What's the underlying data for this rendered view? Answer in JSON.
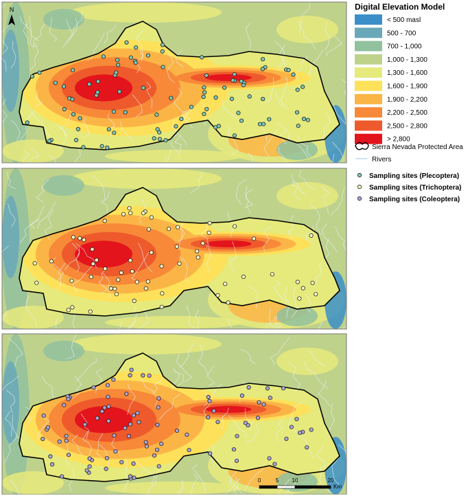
{
  "legend": {
    "title": "Digital Elevation Model",
    "classes": [
      {
        "label": "< 500 masl",
        "color": "#3b8fc8"
      },
      {
        "label": "500 - 700",
        "color": "#69a8b8"
      },
      {
        "label": "700 - 1,000",
        "color": "#92c19e"
      },
      {
        "label": "1,000 - 1,300",
        "color": "#bfd28c"
      },
      {
        "label": "1,300 - 1,600",
        "color": "#e6ea7c"
      },
      {
        "label": "1,600 - 1,900",
        "color": "#fde15a"
      },
      {
        "label": "1,900 - 2,200",
        "color": "#fbb547"
      },
      {
        "label": "2,200 - 2,500",
        "color": "#f78938"
      },
      {
        "label": "2,500 - 2,800",
        "color": "#ee5a2c"
      },
      {
        "label": "> 2,800",
        "color": "#e3141c"
      }
    ],
    "protected_area": "Sierra Nevada Protected Area",
    "rivers": "Rivers",
    "sites": [
      {
        "label": "Sampling sites (Plecoptera)",
        "color": "#80c7b5"
      },
      {
        "label": "Sampling sites (Trichoptera)",
        "color": "#fbfbc4"
      },
      {
        "label": "Sampling sites (Coleoptera)",
        "color": "#aba7d8"
      }
    ]
  },
  "north": "N",
  "scale_bar": {
    "ticks": [
      0,
      5,
      10,
      20
    ],
    "unit": "Km"
  }
}
